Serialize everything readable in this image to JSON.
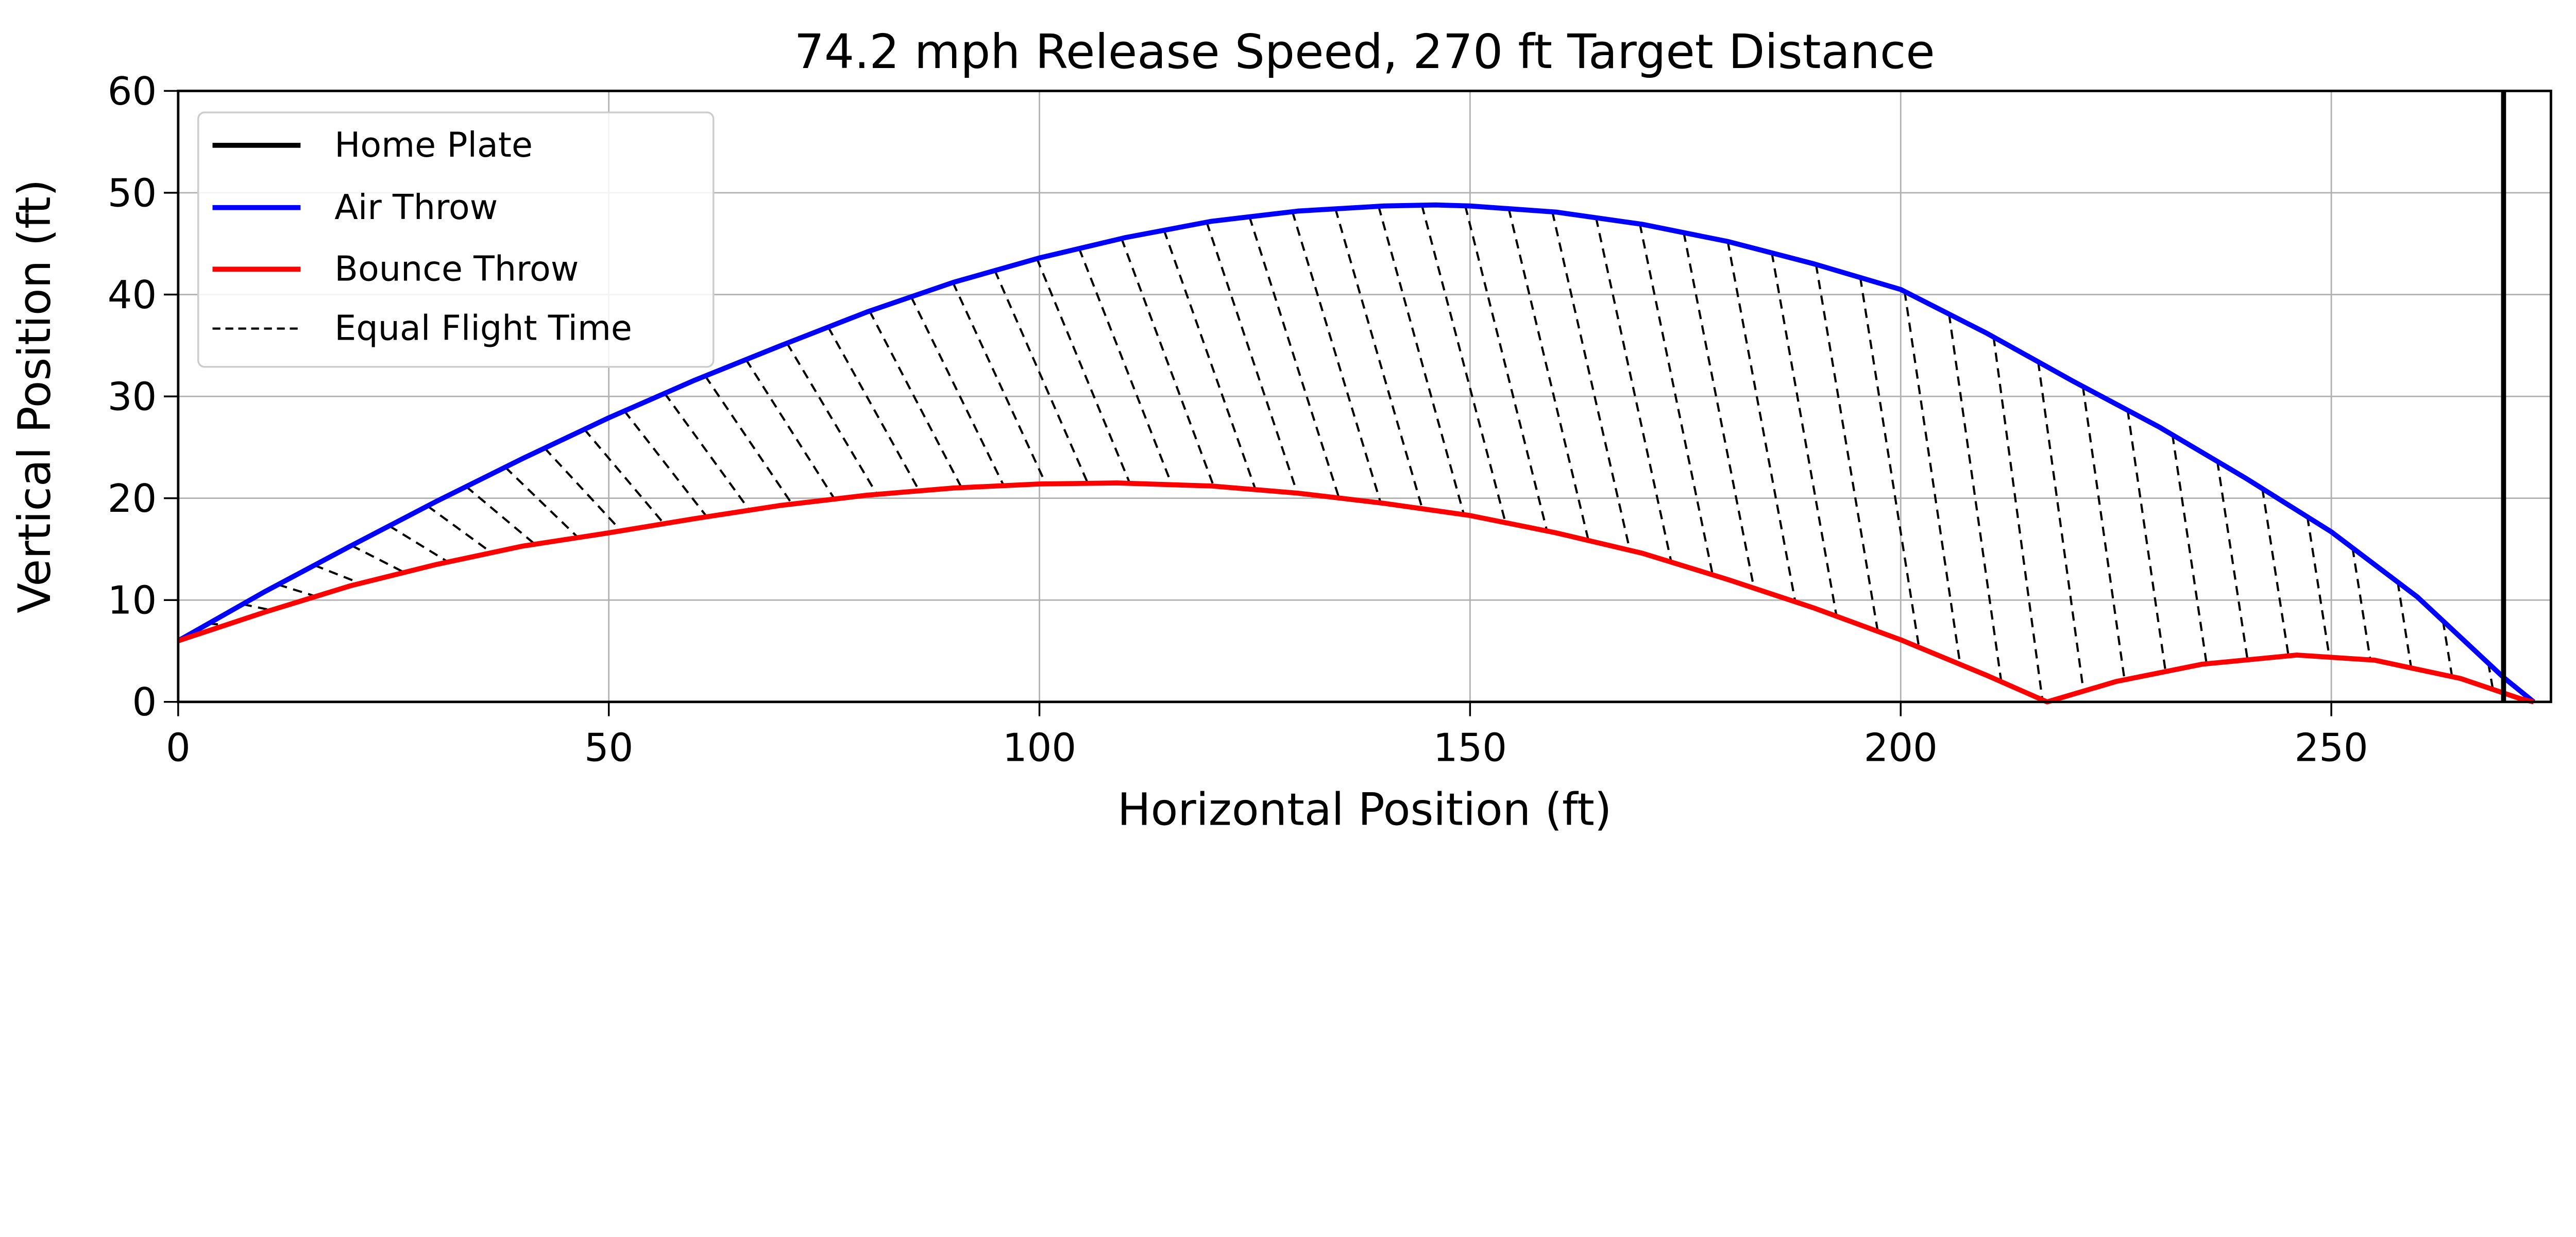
{
  "chart_data": {
    "type": "line",
    "title": "74.2 mph Release Speed, 270 ft Target Distance",
    "xlabel": "Horizontal Position (ft)",
    "ylabel": "Vertical Position (ft)",
    "xlim": [
      0,
      275.5
    ],
    "ylim": [
      0,
      60
    ],
    "xticks": [
      0,
      50,
      100,
      150,
      200,
      250
    ],
    "yticks": [
      0,
      10,
      20,
      30,
      40,
      50,
      60
    ],
    "grid": true,
    "legend_position": "top-left",
    "home_plate": {
      "name": "Home Plate",
      "x": 270,
      "color": "#000000"
    },
    "series": [
      {
        "name": "Air Throw",
        "color": "#0000ff",
        "x": [
          0,
          10,
          20,
          30,
          40,
          50,
          60,
          70,
          80,
          90,
          100,
          110,
          120,
          130,
          140,
          146,
          150,
          160,
          170,
          180,
          190,
          200,
          210,
          220,
          230,
          240,
          250,
          260,
          270,
          273.5
        ],
        "y": [
          6.0,
          10.8,
          15.3,
          19.7,
          23.9,
          27.9,
          31.6,
          35.0,
          38.3,
          41.2,
          43.6,
          45.6,
          47.2,
          48.2,
          48.7,
          48.8,
          48.7,
          48.1,
          46.9,
          45.2,
          43.0,
          40.5,
          36.2,
          31.5,
          27.0,
          22.0,
          16.7,
          10.3,
          2.4,
          0
        ]
      },
      {
        "name": "Bounce Throw",
        "color": "#ff0000",
        "x": [
          0,
          10,
          20,
          30,
          40,
          50,
          60,
          70,
          80,
          90,
          100,
          109,
          120,
          130,
          140,
          150,
          160,
          170,
          180,
          190,
          200,
          210,
          217,
          225,
          235,
          246,
          255,
          265,
          272,
          273.5
        ],
        "y": [
          6.0,
          8.8,
          11.4,
          13.5,
          15.3,
          16.6,
          18.0,
          19.3,
          20.3,
          21.0,
          21.4,
          21.5,
          21.2,
          20.5,
          19.5,
          18.3,
          16.6,
          14.6,
          12.0,
          9.2,
          6.1,
          2.6,
          0,
          2.0,
          3.7,
          4.6,
          4.1,
          2.3,
          0.3,
          0
        ]
      }
    ],
    "equal_flight_time": {
      "name": "Equal Flight Time",
      "color": "#000000",
      "line_count": 56
    }
  }
}
